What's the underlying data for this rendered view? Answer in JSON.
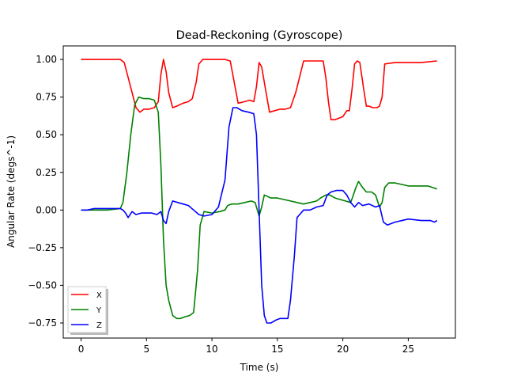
{
  "chart_data": {
    "type": "line",
    "title": "Dead-Reckoning (Gyroscope)",
    "xlabel": "Time (s)",
    "ylabel": "Angular Rate (degs^-1)",
    "xlim": [
      -1.36,
      28.6
    ],
    "ylim": [
      -0.85,
      1.09
    ],
    "xticks": [
      0,
      5,
      10,
      15,
      20,
      25
    ],
    "yticks": [
      -0.75,
      -0.5,
      -0.25,
      0.0,
      0.25,
      0.5,
      0.75,
      1.0
    ],
    "ytick_labels": [
      "−0.75",
      "−0.50",
      "−0.25",
      "0.00",
      "0.25",
      "0.50",
      "0.75",
      "1.00"
    ],
    "grid": false,
    "legend_position": "lower-left",
    "series": [
      {
        "name": "X",
        "color": "#ff0000",
        "x": [
          0,
          1,
          2,
          3,
          3.3,
          3.6,
          3.9,
          4.2,
          4.5,
          4.8,
          5.2,
          5.6,
          5.9,
          6.1,
          6.3,
          6.5,
          6.7,
          7.0,
          7.3,
          7.8,
          8.2,
          8.5,
          8.8,
          9.0,
          9.3,
          10,
          11,
          11.4,
          11.7,
          12.0,
          12.5,
          12.9,
          13.2,
          13.4,
          13.6,
          13.8,
          14.1,
          14.4,
          14.8,
          15.2,
          15.6,
          16.0,
          16.4,
          17.0,
          18.0,
          18.5,
          18.7,
          18.9,
          19.1,
          19.4,
          19.7,
          20.0,
          20.3,
          20.5,
          20.7,
          20.9,
          21.1,
          21.3,
          21.6,
          21.8,
          22.0,
          22.3,
          22.6,
          22.8,
          23.0,
          23.2,
          24.0,
          25.0,
          26.0,
          27.2
        ],
        "y": [
          1.0,
          1.0,
          1.0,
          1.0,
          0.98,
          0.88,
          0.78,
          0.68,
          0.65,
          0.67,
          0.67,
          0.68,
          0.72,
          0.9,
          1.0,
          0.92,
          0.78,
          0.68,
          0.69,
          0.71,
          0.72,
          0.74,
          0.85,
          0.97,
          1.0,
          1.0,
          1.0,
          0.99,
          0.85,
          0.71,
          0.72,
          0.73,
          0.72,
          0.82,
          0.98,
          0.95,
          0.8,
          0.65,
          0.66,
          0.67,
          0.67,
          0.68,
          0.78,
          0.99,
          0.99,
          0.99,
          0.88,
          0.72,
          0.6,
          0.6,
          0.61,
          0.62,
          0.66,
          0.66,
          0.8,
          0.97,
          0.99,
          0.98,
          0.8,
          0.69,
          0.69,
          0.68,
          0.68,
          0.69,
          0.75,
          0.97,
          0.98,
          0.98,
          0.98,
          0.99
        ]
      },
      {
        "name": "Y",
        "color": "#008000",
        "x": [
          0,
          1,
          2,
          3,
          3.2,
          3.5,
          3.8,
          4.1,
          4.4,
          4.8,
          5.2,
          5.6,
          5.9,
          6.1,
          6.3,
          6.5,
          6.7,
          7.0,
          7.3,
          7.6,
          7.9,
          8.3,
          8.6,
          8.9,
          9.1,
          9.4,
          10,
          10.6,
          11.0,
          11.2,
          11.5,
          12.0,
          12.5,
          13.0,
          13.3,
          13.6,
          13.8,
          14.0,
          14.5,
          15.0,
          15.5,
          16.0,
          16.5,
          17.0,
          17.5,
          18.0,
          18.3,
          18.7,
          19.0,
          19.4,
          19.8,
          20.2,
          20.6,
          21.0,
          21.2,
          21.5,
          21.8,
          22.2,
          22.5,
          22.8,
          23.0,
          23.2,
          23.5,
          24.0,
          24.5,
          25.0,
          25.5,
          26.0,
          26.5,
          27.2
        ],
        "y": [
          0.0,
          0.0,
          0.0,
          0.01,
          0.05,
          0.25,
          0.5,
          0.7,
          0.75,
          0.74,
          0.74,
          0.73,
          0.65,
          0.3,
          -0.2,
          -0.5,
          -0.6,
          -0.7,
          -0.72,
          -0.72,
          -0.71,
          -0.7,
          -0.68,
          -0.4,
          -0.1,
          -0.01,
          -0.02,
          -0.01,
          0.0,
          0.03,
          0.04,
          0.04,
          0.05,
          0.06,
          0.05,
          -0.04,
          0.02,
          0.1,
          0.08,
          0.08,
          0.07,
          0.06,
          0.05,
          0.04,
          0.05,
          0.06,
          0.08,
          0.1,
          0.1,
          0.08,
          0.07,
          0.06,
          0.05,
          0.15,
          0.19,
          0.15,
          0.12,
          0.12,
          0.1,
          0.02,
          0.05,
          0.15,
          0.18,
          0.18,
          0.17,
          0.16,
          0.16,
          0.16,
          0.16,
          0.14
        ]
      },
      {
        "name": "Z",
        "color": "#0000ff",
        "x": [
          0,
          0.5,
          1,
          1.5,
          2,
          2.5,
          3,
          3.2,
          3.4,
          3.6,
          3.9,
          4.2,
          4.6,
          5.0,
          5.4,
          5.8,
          6.1,
          6.3,
          6.5,
          6.7,
          7.0,
          7.4,
          7.8,
          8.2,
          8.6,
          9.0,
          9.4,
          10.0,
          10.5,
          11.0,
          11.3,
          11.6,
          11.9,
          12.3,
          12.8,
          13.2,
          13.4,
          13.6,
          13.8,
          14.0,
          14.2,
          14.5,
          14.9,
          15.2,
          15.5,
          15.8,
          16.0,
          16.3,
          16.5,
          17.0,
          17.5,
          18.0,
          18.5,
          18.8,
          19.1,
          19.5,
          20.0,
          20.3,
          20.6,
          20.9,
          21.2,
          21.5,
          22.0,
          22.5,
          22.8,
          23.1,
          23.4,
          24.0,
          25.0,
          26.0,
          26.7,
          27.0,
          27.2
        ],
        "y": [
          0.0,
          0.0,
          0.01,
          0.01,
          0.01,
          0.01,
          0.01,
          0.0,
          -0.02,
          -0.05,
          -0.01,
          -0.03,
          -0.02,
          -0.02,
          -0.02,
          -0.03,
          -0.01,
          -0.07,
          -0.09,
          -0.01,
          0.06,
          0.05,
          0.04,
          0.03,
          0.0,
          -0.03,
          -0.04,
          -0.03,
          0.02,
          0.2,
          0.55,
          0.68,
          0.68,
          0.66,
          0.65,
          0.64,
          0.5,
          0.0,
          -0.5,
          -0.7,
          -0.75,
          -0.75,
          -0.73,
          -0.72,
          -0.72,
          -0.72,
          -0.6,
          -0.3,
          -0.05,
          0.0,
          0.0,
          0.02,
          0.03,
          0.1,
          0.12,
          0.13,
          0.13,
          0.1,
          0.05,
          0.02,
          0.05,
          0.03,
          0.04,
          0.02,
          0.03,
          -0.08,
          -0.1,
          -0.08,
          -0.06,
          -0.07,
          -0.07,
          -0.08,
          -0.07
        ]
      }
    ]
  }
}
